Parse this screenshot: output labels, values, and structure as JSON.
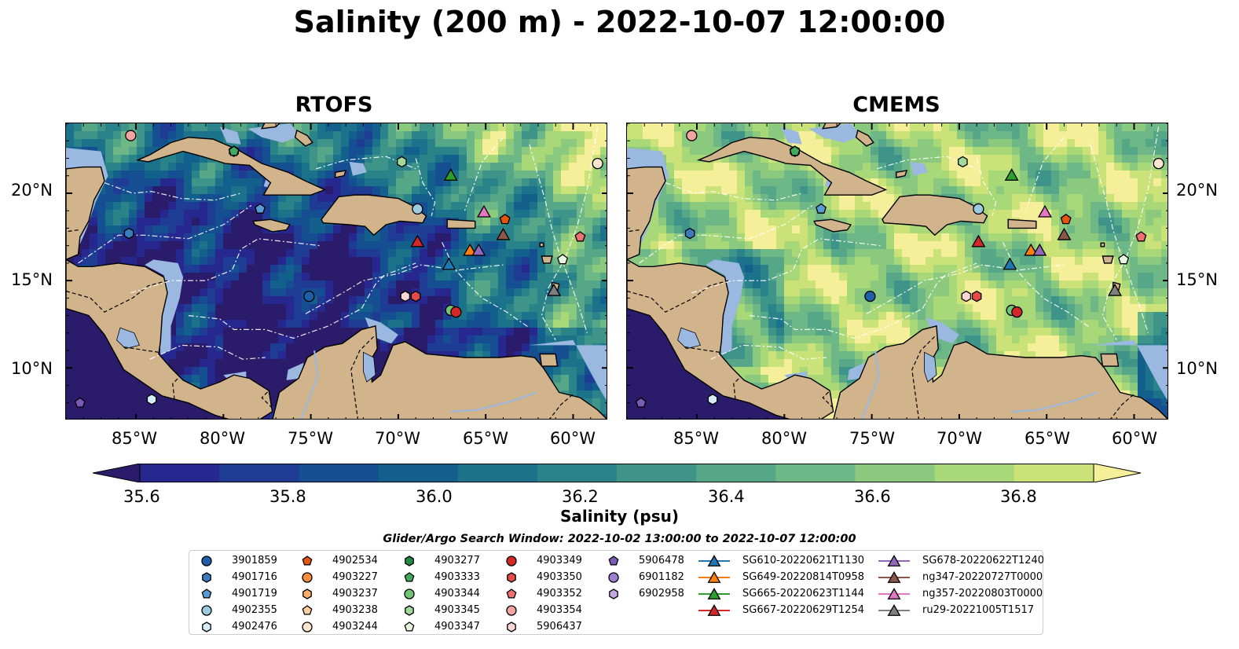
{
  "title": "Salinity (200 m) - 2022-10-07 12:00:00",
  "panels": [
    {
      "title": "RTOFS",
      "model": "rtofs"
    },
    {
      "title": "CMEMS",
      "model": "cmems"
    }
  ],
  "lat_ticks": [
    "20°N",
    "15°N",
    "10°N"
  ],
  "lon_ticks": [
    "85°W",
    "80°W",
    "75°W",
    "70°W",
    "65°W",
    "60°W"
  ],
  "extent": {
    "lon_min": -89,
    "lon_max": -58,
    "lat_min": 7,
    "lat_max": 24
  },
  "colorbar": {
    "label": "Salinity (psu)",
    "vmin": 35.5,
    "vmax": 36.9,
    "step": 0.1,
    "ticks": [
      "35.6",
      "35.8",
      "36.0",
      "36.2",
      "36.4",
      "36.6",
      "36.8"
    ],
    "tick_values": [
      35.6,
      35.8,
      36.0,
      36.2,
      36.4,
      36.6,
      36.8
    ],
    "colors": [
      "#2a1b6b",
      "#26288f",
      "#1f3c95",
      "#154f92",
      "#13608d",
      "#1b728a",
      "#2b838a",
      "#3f948a",
      "#56a688",
      "#6db886",
      "#8bc97e",
      "#a8d877",
      "#cbe279",
      "#f5ef9a"
    ],
    "extend": "both"
  },
  "legend": {
    "title": "Glider/Argo Search Window: 2022-10-02 13:00:00 to 2022-10-07 12:00:00",
    "argo": [
      {
        "id": "3901859",
        "marker": "circle",
        "color": "#1f5fa8"
      },
      {
        "id": "4901716",
        "marker": "hexagon",
        "color": "#3a7dbf"
      },
      {
        "id": "4901719",
        "marker": "pentagon",
        "color": "#5b9bd5"
      },
      {
        "id": "4902355",
        "marker": "circle",
        "color": "#9ecae1"
      },
      {
        "id": "4902476",
        "marker": "hexagon",
        "color": "#d6ecf7"
      },
      {
        "id": "4902534",
        "marker": "pentagon",
        "color": "#e6550d"
      },
      {
        "id": "4903227",
        "marker": "circle",
        "color": "#fd8d3c"
      },
      {
        "id": "4903237",
        "marker": "hexagon",
        "color": "#fdae6b"
      },
      {
        "id": "4903238",
        "marker": "pentagon",
        "color": "#fdd0a2"
      },
      {
        "id": "4903244",
        "marker": "circle",
        "color": "#fee6ce"
      },
      {
        "id": "4903277",
        "marker": "hexagon",
        "color": "#238b45"
      },
      {
        "id": "4903333",
        "marker": "pentagon",
        "color": "#41ab5d"
      },
      {
        "id": "4903344",
        "marker": "circle",
        "color": "#74c476"
      },
      {
        "id": "4903345",
        "marker": "hexagon",
        "color": "#a1d99b"
      },
      {
        "id": "4903347",
        "marker": "pentagon",
        "color": "#e5f5e0"
      },
      {
        "id": "4903349",
        "marker": "circle",
        "color": "#d62728"
      },
      {
        "id": "4903350",
        "marker": "hexagon",
        "color": "#e34a4a"
      },
      {
        "id": "4903352",
        "marker": "pentagon",
        "color": "#f07070"
      },
      {
        "id": "4903354",
        "marker": "circle",
        "color": "#f4a3a3"
      },
      {
        "id": "5906437",
        "marker": "hexagon",
        "color": "#fcd5d5"
      },
      {
        "id": "5906478",
        "marker": "pentagon",
        "color": "#7b5ab8"
      },
      {
        "id": "6901182",
        "marker": "circle",
        "color": "#9e7fd1"
      },
      {
        "id": "6902958",
        "marker": "hexagon",
        "color": "#c3a9e3"
      }
    ],
    "gliders": [
      {
        "id": "SG610-20220621T1130",
        "color": "#1f77b4"
      },
      {
        "id": "SG649-20220814T0958",
        "color": "#ff7f0e"
      },
      {
        "id": "SG665-20220623T1144",
        "color": "#2ca02c"
      },
      {
        "id": "SG667-20220629T1254",
        "color": "#d62728"
      },
      {
        "id": "SG678-20220622T1240",
        "color": "#9467bd"
      },
      {
        "id": "ng347-20220727T0000",
        "color": "#8c564b"
      },
      {
        "id": "ng357-20220803T0000",
        "color": "#e377c2"
      },
      {
        "id": "ru29-20221005T1517",
        "color": "#7f7f7f"
      }
    ]
  },
  "positions": {
    "argo": [
      {
        "id": "3901859",
        "lon": -75.1,
        "lat": 14.1
      },
      {
        "id": "4901716",
        "lon": -85.4,
        "lat": 17.7
      },
      {
        "id": "4901719",
        "lon": -77.9,
        "lat": 19.1
      },
      {
        "id": "4902355",
        "lon": -68.9,
        "lat": 19.1
      },
      {
        "id": "4902476",
        "lon": -84.1,
        "lat": 8.2
      },
      {
        "id": "4902534",
        "lon": -63.9,
        "lat": 18.5
      },
      {
        "id": "4903244",
        "lon": -58.6,
        "lat": 21.7
      },
      {
        "id": "4903277",
        "lon": -79.4,
        "lat": 22.4
      },
      {
        "id": "4903333",
        "lon": -79.4,
        "lat": 22.4
      },
      {
        "id": "4903344",
        "lon": -67.0,
        "lat": 13.3
      },
      {
        "id": "4903345",
        "lon": -69.8,
        "lat": 21.8
      },
      {
        "id": "4903347",
        "lon": -60.6,
        "lat": 16.2
      },
      {
        "id": "4903349",
        "lon": -66.7,
        "lat": 13.2
      },
      {
        "id": "4903350",
        "lon": -69.0,
        "lat": 14.1
      },
      {
        "id": "4903352",
        "lon": -59.6,
        "lat": 17.5
      },
      {
        "id": "4903354",
        "lon": -85.3,
        "lat": 23.3
      },
      {
        "id": "5906437",
        "lon": -69.6,
        "lat": 14.1
      },
      {
        "id": "5906478",
        "lon": -88.2,
        "lat": 8.0
      }
    ],
    "gliders": [
      {
        "id": "SG610-20220621T1130",
        "lon": -67.1,
        "lat": 15.9
      },
      {
        "id": "SG649-20220814T0958",
        "lon": -65.9,
        "lat": 16.7
      },
      {
        "id": "SG665-20220623T1144",
        "lon": -67.0,
        "lat": 21.0
      },
      {
        "id": "SG667-20220629T1254",
        "lon": -68.9,
        "lat": 17.2
      },
      {
        "id": "SG678-20220622T1240",
        "lon": -65.4,
        "lat": 16.7
      },
      {
        "id": "ng347-20220727T0000",
        "lon": -64.0,
        "lat": 17.6
      },
      {
        "id": "ng357-20220803T0000",
        "lon": -65.1,
        "lat": 18.9
      },
      {
        "id": "ru29-20221005T1517",
        "lon": -61.1,
        "lat": 14.4
      }
    ]
  }
}
